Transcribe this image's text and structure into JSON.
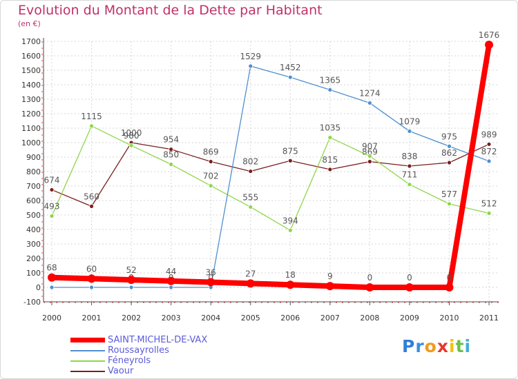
{
  "chart_data": {
    "type": "line",
    "title": "Evolution du Montant de la Dette par Habitant",
    "subtitle": "(en €)",
    "categories": [
      "2000",
      "2001",
      "2002",
      "2003",
      "2004",
      "2005",
      "2006",
      "2007",
      "2008",
      "2009",
      "2010",
      "2011"
    ],
    "ylim": [
      -100,
      1700
    ],
    "yticks": [
      -100,
      0,
      100,
      200,
      300,
      400,
      500,
      600,
      700,
      800,
      900,
      1000,
      1100,
      1200,
      1300,
      1400,
      1500,
      1600,
      1700
    ],
    "grid": true,
    "legend_position": "bottom-left",
    "series": [
      {
        "name": "SAINT-MICHEL-DE-VAX",
        "color": "#ff0000",
        "values": [
          68,
          60,
          52,
          44,
          36,
          27,
          18,
          9,
          0,
          0,
          0,
          1676
        ]
      },
      {
        "name": "Roussayrolles",
        "color": "#4f8fcf",
        "values": [
          0,
          0,
          0,
          0,
          0,
          1529,
          1452,
          1365,
          1274,
          1079,
          975,
          872
        ]
      },
      {
        "name": "Féneyrols",
        "color": "#8ed64a",
        "values": [
          493,
          1115,
          980,
          850,
          702,
          555,
          394,
          1035,
          907,
          711,
          577,
          512
        ]
      },
      {
        "name": "Vaour",
        "color": "#7a1f1f",
        "values": [
          674,
          560,
          1000,
          954,
          869,
          802,
          875,
          815,
          869,
          838,
          862,
          989
        ]
      }
    ]
  },
  "brand": {
    "logo_letters": [
      "P",
      "r",
      "o",
      "x",
      "i",
      "t",
      "i"
    ],
    "logo_colors": [
      "#2f80d6",
      "#3a8fe0",
      "#f39a1c",
      "#e8372b",
      "#f2c20c",
      "#6cc04a",
      "#3fb0d8"
    ]
  }
}
